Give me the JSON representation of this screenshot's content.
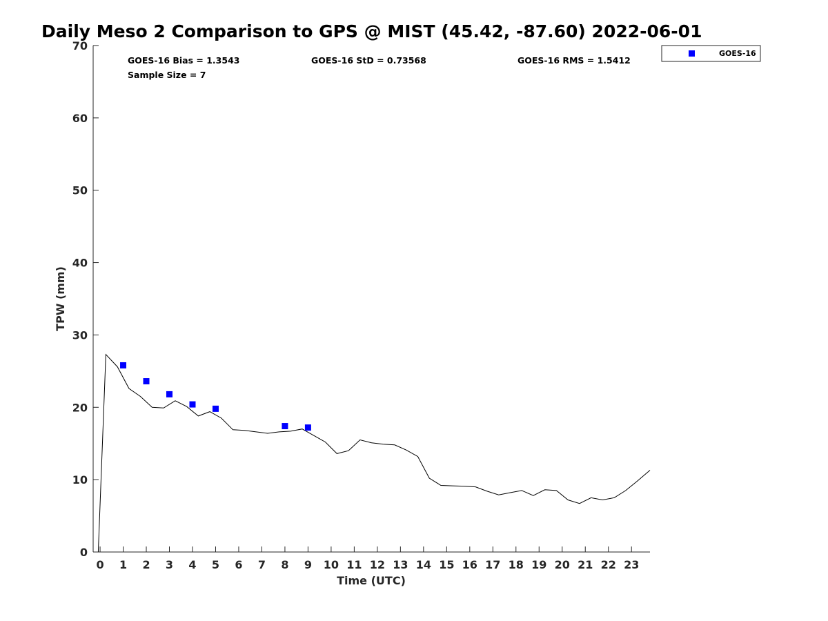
{
  "chart_data": {
    "type": "scatter",
    "title": "Daily Meso 2 Comparison to GPS @ MIST (45.42, -87.60) 2022-06-01",
    "xlabel": "Time (UTC)",
    "ylabel": "TPW (mm)",
    "xlim": [
      -0.3,
      23.8
    ],
    "ylim": [
      0,
      70
    ],
    "x_ticks": [
      0,
      1,
      2,
      3,
      4,
      5,
      6,
      7,
      8,
      9,
      10,
      11,
      12,
      13,
      14,
      15,
      16,
      17,
      18,
      19,
      20,
      21,
      22,
      23
    ],
    "y_ticks": [
      0,
      10,
      20,
      30,
      40,
      50,
      60,
      70
    ],
    "grid": false,
    "legend_position": "outside-top-right",
    "stats": {
      "bias": "GOES-16 Bias = 1.3543",
      "std": "GOES-16 StD = 0.73568",
      "rms": "GOES-16 RMS = 1.5412",
      "sample_size": "Sample Size = 7"
    },
    "series": [
      {
        "name": "GOES-16",
        "kind": "scatter",
        "marker": "square",
        "color": "#0000ff",
        "points": [
          [
            1.0,
            25.8
          ],
          [
            2.0,
            23.6
          ],
          [
            3.0,
            21.8
          ],
          [
            4.0,
            20.4
          ],
          [
            5.0,
            19.8
          ],
          [
            8.0,
            17.4
          ],
          [
            9.0,
            17.2
          ]
        ]
      },
      {
        "kind": "line",
        "color": "#000000",
        "points": [
          [
            -0.08,
            0.0
          ],
          [
            0.25,
            27.3
          ],
          [
            0.75,
            25.6
          ],
          [
            1.25,
            22.6
          ],
          [
            1.75,
            21.5
          ],
          [
            2.25,
            20.0
          ],
          [
            2.75,
            19.9
          ],
          [
            3.25,
            20.9
          ],
          [
            3.75,
            20.1
          ],
          [
            4.25,
            18.8
          ],
          [
            4.75,
            19.4
          ],
          [
            5.25,
            18.5
          ],
          [
            5.75,
            16.9
          ],
          [
            6.25,
            16.8
          ],
          [
            6.75,
            16.6
          ],
          [
            7.25,
            16.4
          ],
          [
            7.75,
            16.6
          ],
          [
            8.25,
            16.7
          ],
          [
            8.75,
            17.0
          ],
          [
            9.25,
            16.1
          ],
          [
            9.75,
            15.2
          ],
          [
            10.25,
            13.6
          ],
          [
            10.75,
            14.0
          ],
          [
            11.25,
            15.5
          ],
          [
            11.75,
            15.1
          ],
          [
            12.25,
            14.9
          ],
          [
            12.75,
            14.8
          ],
          [
            13.25,
            14.1
          ],
          [
            13.75,
            13.2
          ],
          [
            14.25,
            10.2
          ],
          [
            14.75,
            9.2
          ],
          [
            15.25,
            9.15
          ],
          [
            15.75,
            9.1
          ],
          [
            16.25,
            9.0
          ],
          [
            16.75,
            8.4
          ],
          [
            17.25,
            7.9
          ],
          [
            17.75,
            8.2
          ],
          [
            18.25,
            8.5
          ],
          [
            18.75,
            7.8
          ],
          [
            19.25,
            8.6
          ],
          [
            19.75,
            8.5
          ],
          [
            20.25,
            7.2
          ],
          [
            20.75,
            6.7
          ],
          [
            21.25,
            7.5
          ],
          [
            21.75,
            7.2
          ],
          [
            22.25,
            7.5
          ],
          [
            22.75,
            8.5
          ],
          [
            23.25,
            9.8
          ],
          [
            23.8,
            11.3
          ]
        ]
      }
    ]
  }
}
